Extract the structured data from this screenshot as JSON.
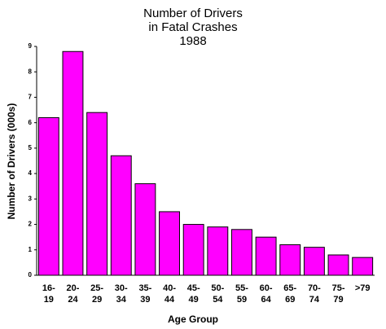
{
  "chart_data": {
    "type": "bar",
    "title": "Number of Drivers\nin Fatal Crashes\n1988",
    "x_label": "Age Group",
    "y_label": "Number of Drivers (000s)",
    "categories": [
      "16-\n19",
      "20-\n24",
      "25-\n29",
      "30-\n34",
      "35-\n39",
      "40-\n44",
      "45-\n49",
      "50-\n54",
      "55-\n59",
      "60-\n64",
      "65-\n69",
      "70-\n74",
      "75-\n79",
      ">79"
    ],
    "values": [
      6.2,
      8.8,
      6.4,
      4.7,
      3.6,
      2.5,
      2.0,
      1.9,
      1.8,
      1.5,
      1.2,
      1.1,
      0.8,
      0.7
    ],
    "color": "#ff00ff",
    "ylim": [
      0,
      9
    ],
    "yticks": [
      0,
      1,
      2,
      3,
      4,
      5,
      6,
      7,
      8,
      9
    ],
    "grid": false
  }
}
